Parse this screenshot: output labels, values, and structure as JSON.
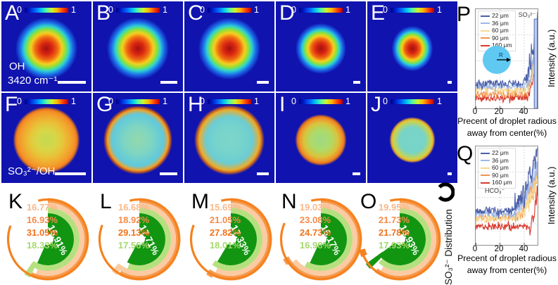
{
  "colorbar": {
    "min": "0",
    "max": "1"
  },
  "panels": [
    {
      "letter": "A",
      "note1": "OH",
      "note2": "3420 cm⁻¹"
    },
    {
      "letter": "B"
    },
    {
      "letter": "C"
    },
    {
      "letter": "D"
    },
    {
      "letter": "E"
    },
    {
      "letter": "F",
      "note1": "SO₃²⁻/OH"
    },
    {
      "letter": "G"
    },
    {
      "letter": "H"
    },
    {
      "letter": "I"
    },
    {
      "letter": "J"
    }
  ],
  "dist_label": "SO₃²⁻ Distribution",
  "colors": {
    "panel_background": "#1013AE",
    "ring_orange": "#F79B50",
    "ring_peach": "#FBCBA3",
    "ring_lightgreen": "#B6E07F",
    "ring_green": "#129612",
    "outer_arc_orange": "#F5821F",
    "label_peach": "#F8B889",
    "label_orange_mid": "#F58B47",
    "label_orange_strong": "#F1731D",
    "label_lightgreen": "#A5D96D",
    "inset_circle_blue": "#5FC9F2",
    "right_bar_fill": "#BBCEF2",
    "right_bar_stroke": "#4E61AA"
  },
  "chart_data": [
    {
      "id": "P",
      "type": "line",
      "letter": "P",
      "annotation": "SO₃²⁻",
      "ylabel": "Intensity (a.u.)",
      "xlabel_line1": "Precent of droplet radious",
      "xlabel_line2": "away from center(%)",
      "xticks": [
        "0",
        "20",
        "40"
      ],
      "xtick_values": [
        0,
        20,
        40
      ],
      "xlim": [
        0,
        51
      ],
      "inset_label": "R",
      "grid": "dashed",
      "legend_position": "top-left",
      "trend": "All five curves are flat noisy baselines from 0-40% then rise sharply near 45-50% of droplet radius; intensity order at baseline: 22 um highest, 160 um lowest; a light-blue vertical band sits at the right edge",
      "right_bar": true,
      "series": [
        {
          "name": "22 μm",
          "color": "#4C5FA8",
          "baseline": 0.745,
          "peak": 0.1,
          "rise_start": 0.76,
          "seed": 7
        },
        {
          "name": "36 μm",
          "color": "#9DB8E8",
          "baseline": 0.775,
          "peak": 0.28,
          "rise_start": 0.8,
          "seed": 13
        },
        {
          "name": "60 μm",
          "color": "#F6D992",
          "baseline": 0.815,
          "peak": 0.3,
          "rise_start": 0.8,
          "seed": 23
        },
        {
          "name": "90 μm",
          "color": "#F2914E",
          "baseline": 0.855,
          "peak": 0.18,
          "rise_start": 0.78,
          "seed": 31
        },
        {
          "name": "160 μm",
          "color": "#D83A2D",
          "baseline": 0.895,
          "peak": 0.42,
          "rise_start": 0.83,
          "seed": 41
        }
      ]
    },
    {
      "id": "Q",
      "type": "line",
      "letter": "Q",
      "annotation": "HCO₃⁻",
      "ylabel": "Intensity (a.u.)",
      "xlabel_line1": "Precent of droplet radious",
      "xlabel_line2": "away from center(%)",
      "xticks": [
        "0",
        "20",
        "40"
      ],
      "xtick_values": [
        0,
        20,
        40
      ],
      "xlim": [
        0,
        51
      ],
      "grid": "dashed",
      "legend_position": "top-left",
      "trend": "Curves rise gradually from ~25% radius and steeply near 45-50%; 160 um stays flat and low until ~45%",
      "right_bar": false,
      "series": [
        {
          "name": "22 μm",
          "color": "#4C5FA8",
          "baseline": 0.655,
          "peak": 0.06,
          "rise_start": 0.5,
          "seed": 53
        },
        {
          "name": "36 μm",
          "color": "#9DB8E8",
          "baseline": 0.685,
          "peak": 0.16,
          "rise_start": 0.55,
          "seed": 61
        },
        {
          "name": "60 μm",
          "color": "#F6D992",
          "baseline": 0.735,
          "peak": 0.3,
          "rise_start": 0.62,
          "seed": 71
        },
        {
          "name": "90 μm",
          "color": "#F2914E",
          "baseline": 0.72,
          "peak": 0.26,
          "rise_start": 0.62,
          "seed": 83
        },
        {
          "name": "160 μm",
          "color": "#D83A2D",
          "baseline": 0.82,
          "peak": 0.4,
          "rise_start": 0.86,
          "seed": 97
        }
      ]
    },
    {
      "id": "K",
      "type": "donut",
      "letter": "K",
      "center_label": "16.91%",
      "center_value": 16.91,
      "side_labels": [
        "16.77%",
        "16.93%",
        "31.05%",
        "18.33%"
      ],
      "side_values": [
        16.77,
        16.93,
        31.05,
        18.33
      ],
      "sweeps": {
        "green": 204,
        "lightgreen": 213,
        "peach": 199,
        "orange": 206,
        "outer_start": -14,
        "outer_end": 290
      },
      "tab": "lightgreen",
      "outer_tab": false
    },
    {
      "id": "L",
      "type": "donut",
      "letter": "L",
      "center_label": "17.71%",
      "center_value": 17.71,
      "side_labels": [
        "16.68%",
        "18.92%",
        "29.13%",
        "17.56%"
      ],
      "side_values": [
        16.68,
        18.92,
        29.13,
        17.56
      ],
      "sweeps": {
        "green": 208,
        "lightgreen": 202,
        "peach": 220,
        "orange": 210,
        "outer_start": -14,
        "outer_end": 291
      },
      "tab": "peach",
      "outer_tab": false
    },
    {
      "id": "M",
      "type": "donut",
      "letter": "M",
      "center_label": "17.33%",
      "center_value": 17.33,
      "side_labels": [
        "15.69%",
        "21.05%",
        "27.82%",
        "18.01%"
      ],
      "side_values": [
        15.69,
        21.05,
        27.82,
        18.01
      ],
      "sweeps": {
        "green": 211,
        "lightgreen": 216,
        "peach": 205,
        "orange": 214,
        "outer_start": -14,
        "outer_end": 291
      },
      "tab": "orange",
      "outer_tab": false
    },
    {
      "id": "N",
      "type": "donut",
      "letter": "N",
      "center_label": "16.17%",
      "center_value": 16.17,
      "side_labels": [
        "19.03%",
        "23.08%",
        "24.73%",
        "16.98%"
      ],
      "side_values": [
        19.03,
        23.08,
        24.73,
        16.98
      ],
      "sweeps": {
        "green": 205,
        "lightgreen": 211,
        "peach": 231,
        "orange": 241,
        "outer_start": -14,
        "outer_end": 294
      },
      "tab": "orange",
      "outer_tab": false
    },
    {
      "id": "O",
      "type": "donut",
      "letter": "O",
      "center_label": "18.93%",
      "center_value": 18.93,
      "side_labels": [
        "19.95%",
        "21.73%",
        "21.78%",
        "17.93%"
      ],
      "side_values": [
        19.95,
        21.73,
        21.78,
        17.93
      ],
      "sweeps": {
        "green": 233,
        "lightgreen": 222,
        "peach": 211,
        "orange": 217,
        "outer_start": -14,
        "outer_end": 254
      },
      "tab": "green",
      "outer_tab": true
    }
  ]
}
